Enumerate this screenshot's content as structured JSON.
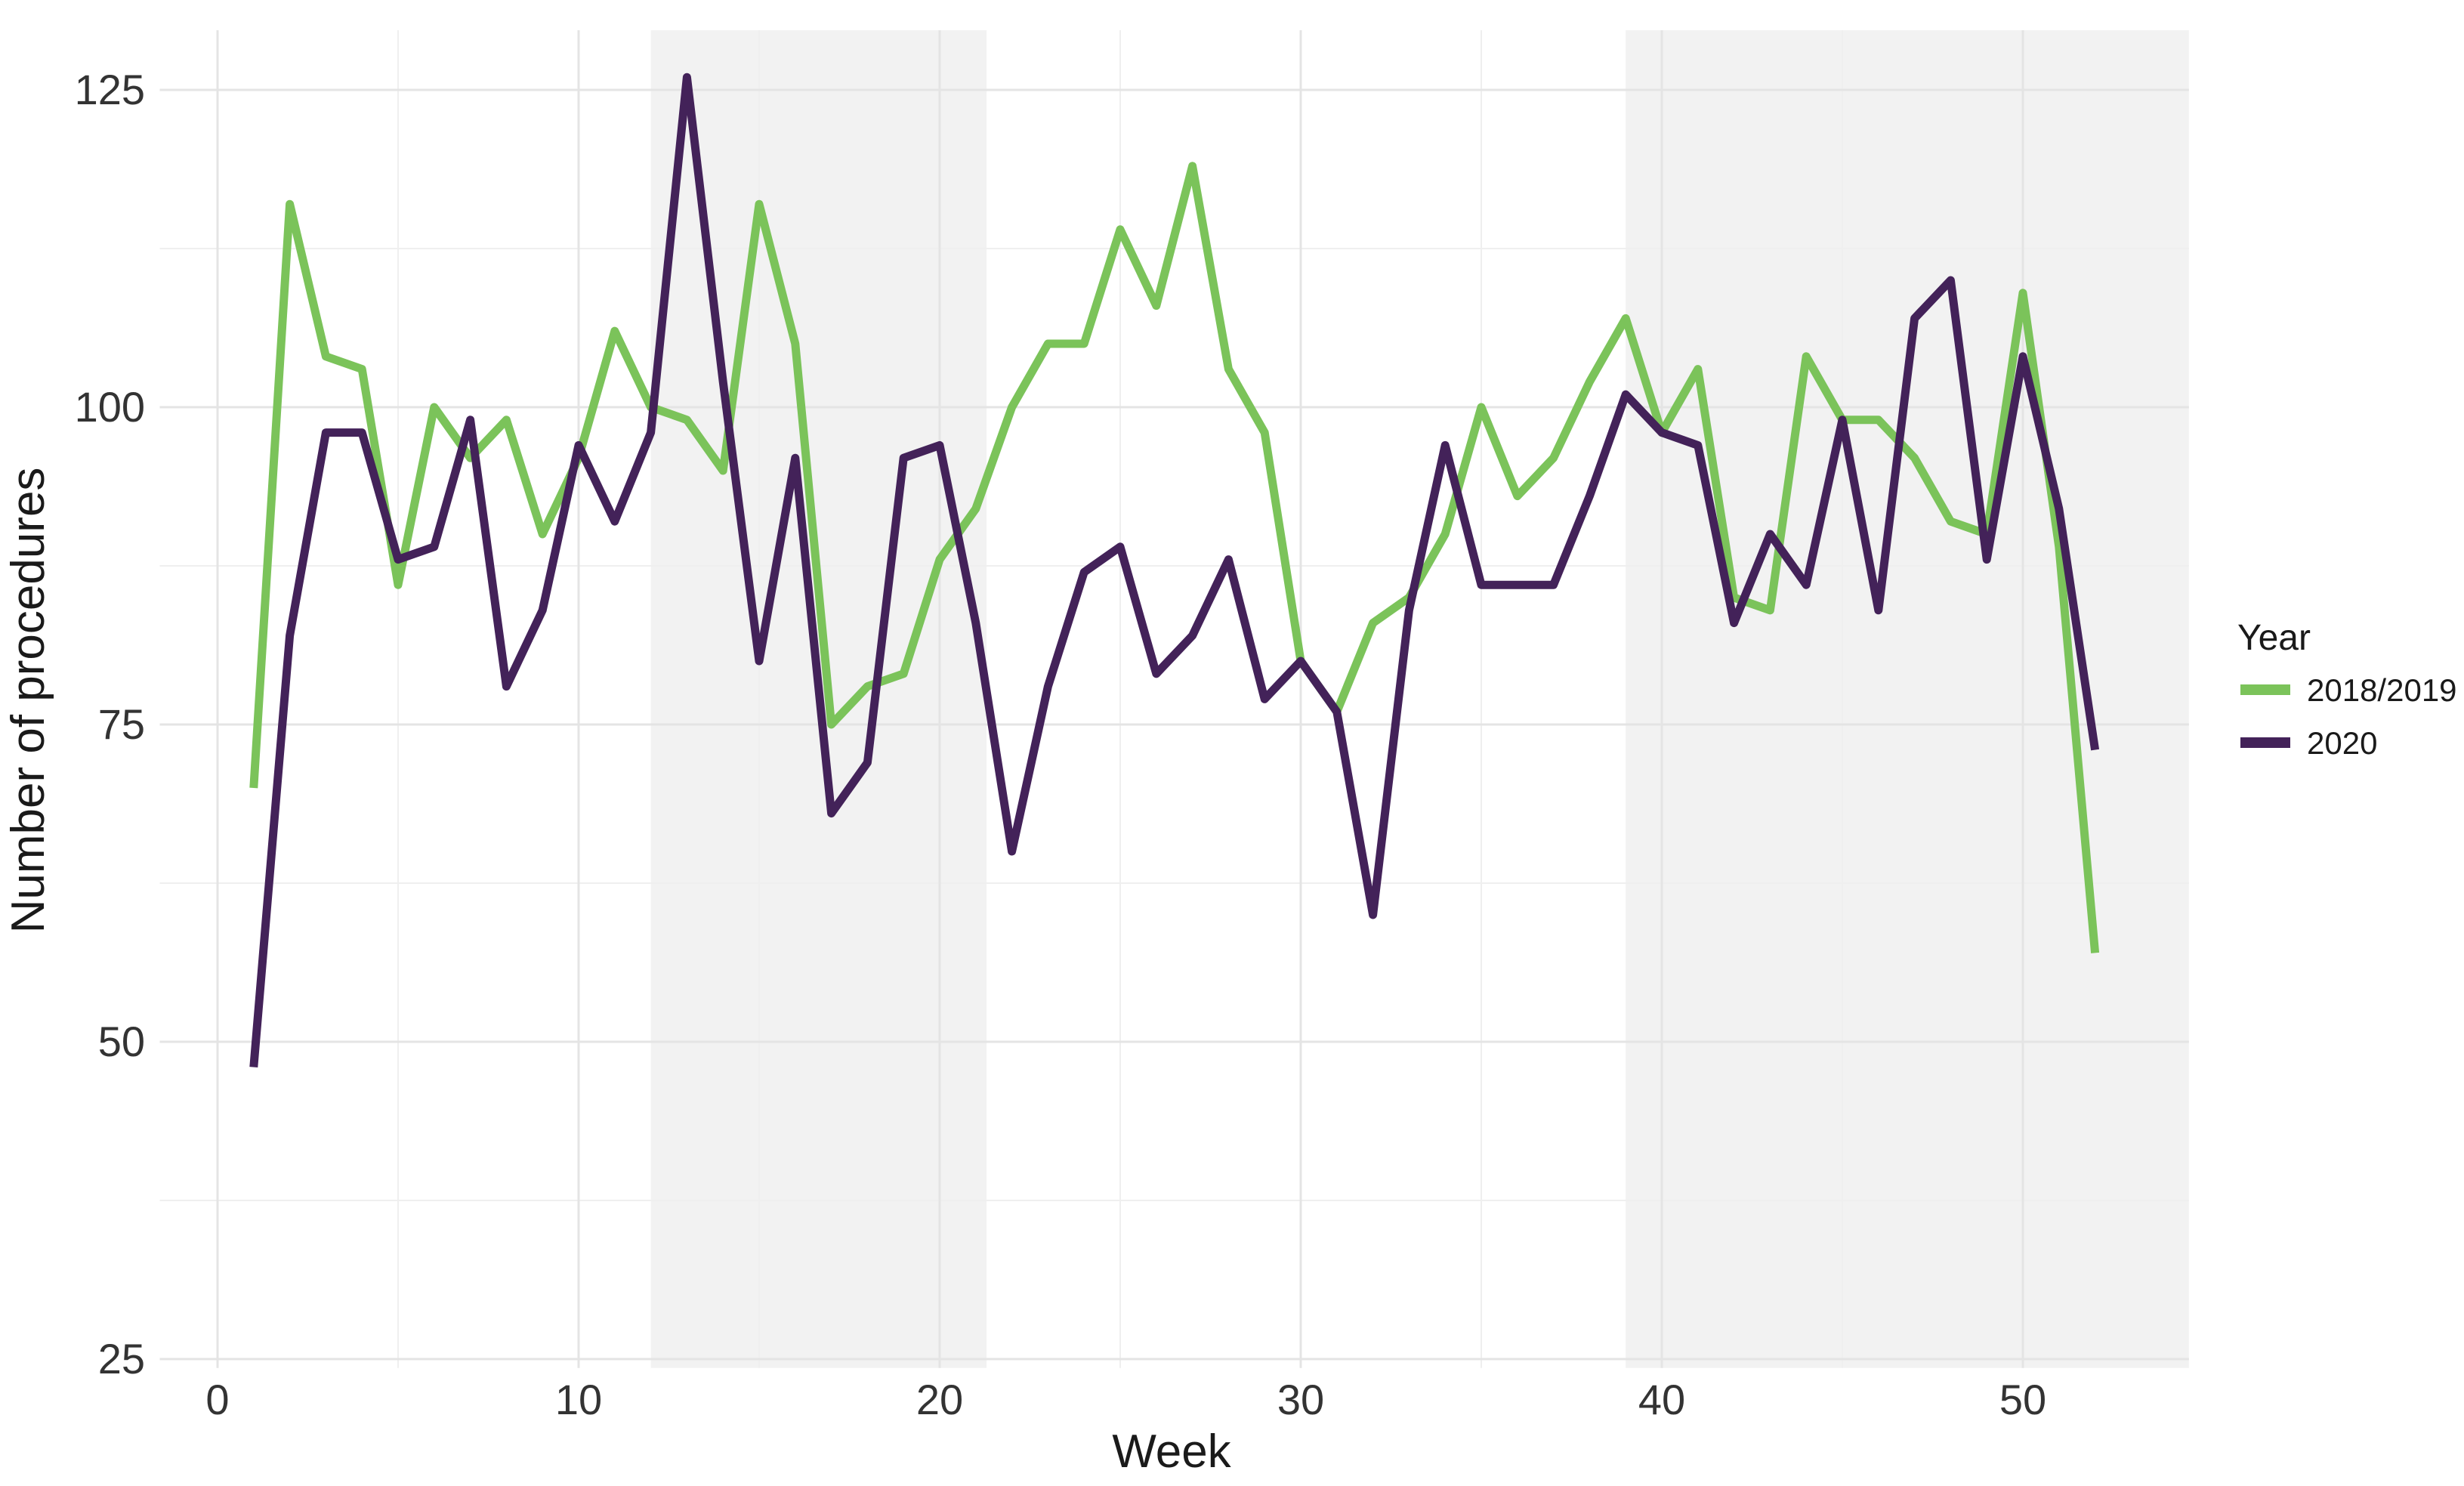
{
  "chart_data": {
    "type": "line",
    "title": "",
    "xlabel": "Week",
    "ylabel": "Number of procedures",
    "x_ticks": [
      0,
      10,
      20,
      30,
      40,
      50
    ],
    "x_minor_ticks": [
      5,
      15,
      25,
      35,
      45
    ],
    "y_ticks": [
      25,
      50,
      75,
      100,
      125
    ],
    "y_minor_ticks": [
      37.5,
      62.5,
      87.5,
      112.5
    ],
    "xlim": [
      -1.6,
      54.6
    ],
    "ylim": [
      24.3,
      129.7
    ],
    "grid": "on",
    "legend_position": "right",
    "weeks": [
      1,
      2,
      3,
      4,
      5,
      6,
      7,
      8,
      9,
      10,
      11,
      12,
      13,
      14,
      15,
      16,
      17,
      18,
      19,
      20,
      21,
      22,
      23,
      24,
      25,
      26,
      27,
      28,
      29,
      30,
      31,
      32,
      33,
      34,
      35,
      36,
      37,
      38,
      39,
      40,
      41,
      42,
      43,
      44,
      45,
      46,
      47,
      48,
      49,
      50,
      51,
      52
    ],
    "series": [
      {
        "name": "2018/2019",
        "color": "#7BC35A",
        "values": [
          70,
          116,
          104,
          103,
          86,
          100,
          96,
          99,
          90,
          96,
          106,
          100,
          99,
          95,
          116,
          105,
          75,
          78,
          79,
          88,
          92,
          100,
          105,
          105,
          114,
          108,
          119,
          103,
          98,
          80,
          76,
          83,
          85,
          90,
          100,
          93,
          96,
          102,
          107,
          98,
          103,
          85,
          84,
          104,
          99,
          99,
          96,
          91,
          90,
          109,
          89,
          57
        ]
      },
      {
        "name": "2020",
        "color": "#432259",
        "values": [
          48,
          82,
          98,
          98,
          88,
          89,
          99,
          78,
          84,
          97,
          91,
          98,
          126,
          102,
          80,
          96,
          68,
          72,
          96,
          97,
          83,
          65,
          78,
          87,
          89,
          79,
          82,
          88,
          77,
          80,
          76,
          60,
          84,
          97,
          86,
          86,
          86,
          93,
          101,
          98,
          97,
          83,
          90,
          86,
          99,
          84,
          107,
          110,
          88,
          104,
          92,
          73
        ]
      }
    ],
    "shaded_bands": [
      {
        "from": 12,
        "to": 21.3
      },
      {
        "from": 39,
        "to": 54.6
      }
    ],
    "band_color": "#f2f2f2",
    "grid_major_color": "#e4e4e4",
    "grid_minor_color": "#efefef",
    "tick_label_color": "#333333",
    "axis_title_color": "#1a1a1a"
  },
  "legend": {
    "title": "Year"
  }
}
